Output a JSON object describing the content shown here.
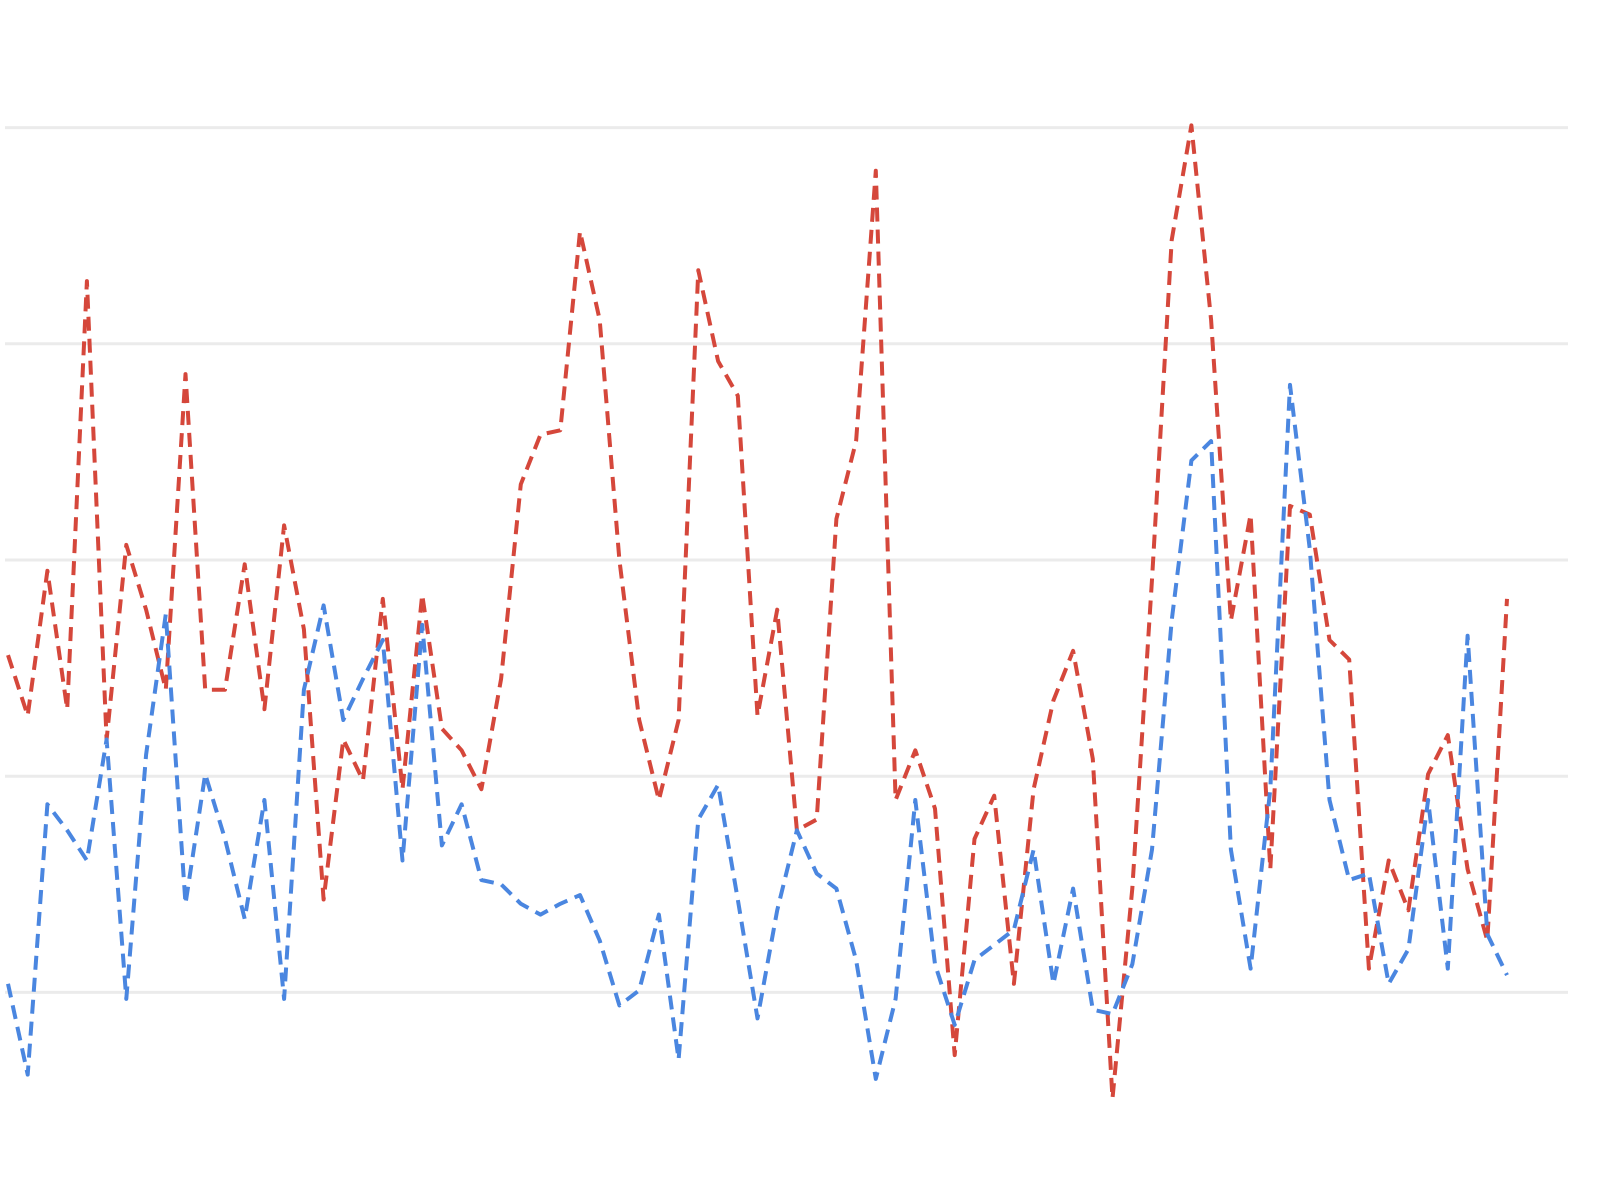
{
  "chart_data": {
    "type": "line",
    "categories": [
      null,
      null,
      null,
      null,
      null,
      null,
      null,
      null,
      null,
      null,
      null,
      null,
      null,
      null,
      null,
      null,
      null,
      null,
      null,
      null,
      null,
      null,
      null,
      null,
      null,
      null,
      null,
      null,
      null,
      null,
      null,
      null,
      null,
      null,
      null,
      null,
      null,
      null,
      null,
      null,
      null,
      null,
      null,
      null,
      null,
      null,
      null,
      null,
      null,
      null,
      null,
      null,
      null,
      null,
      null,
      null,
      null,
      null,
      null,
      null,
      null,
      null,
      null,
      null,
      null,
      null,
      null,
      null,
      null,
      null,
      null,
      null,
      null,
      null,
      null,
      null,
      null
    ],
    "series": [
      {
        "color": "#d5473b",
        "values": [
          156,
          128,
          195,
          131,
          329,
          117,
          207,
          177,
          140,
          286,
          140,
          140,
          198,
          131,
          216,
          168,
          43,
          117,
          98,
          182,
          94,
          184,
          122,
          112,
          94,
          145,
          235,
          258,
          260,
          352,
          311,
          200,
          126,
          89,
          126,
          334,
          292,
          276,
          128,
          177,
          75,
          80,
          219,
          255,
          380,
          89,
          112,
          85,
          -29,
          71,
          91,
          4,
          94,
          135,
          158,
          108,
          -49,
          48,
          191,
          348,
          401,
          311,
          172,
          221,
          57,
          225,
          221,
          163,
          154,
          11,
          61,
          38,
          101,
          119,
          57,
          24,
          182
        ]
      },
      {
        "color": "#4a86e0",
        "values": [
          4,
          -38,
          87,
          75,
          61,
          117,
          -3,
          110,
          175,
          41,
          101,
          71,
          34,
          89,
          -3,
          140,
          179,
          126,
          145,
          163,
          61,
          170,
          68,
          87,
          52,
          50,
          41,
          36,
          41,
          45,
          24,
          -6,
          1,
          36,
          -31,
          80,
          96,
          43,
          -12,
          38,
          75,
          55,
          48,
          15,
          -40,
          -3,
          89,
          13,
          -15,
          15,
          22,
          29,
          66,
          4,
          48,
          -8,
          -10,
          13,
          66,
          172,
          246,
          255,
          66,
          11,
          94,
          281,
          205,
          89,
          52,
          55,
          4,
          20,
          89,
          11,
          165,
          27,
          8
        ]
      }
    ],
    "ylim": [
      -96,
      459
    ],
    "yticks": [
      0,
      100,
      200,
      300,
      400
    ],
    "grid": true
  }
}
